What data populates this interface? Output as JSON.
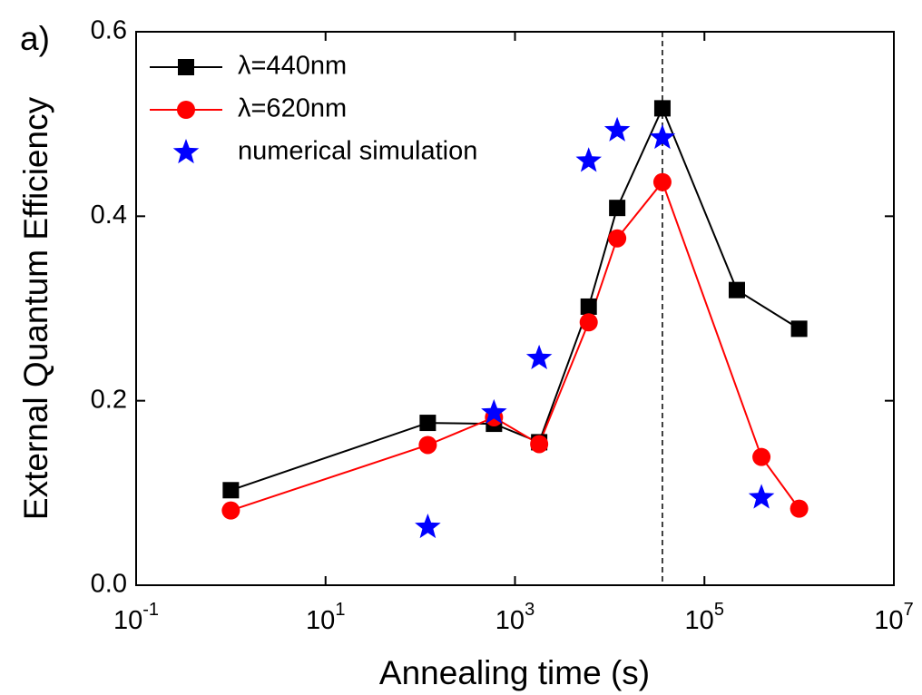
{
  "chart_data": {
    "type": "line",
    "annotation": "a)",
    "x_label": "Annealing time (s)",
    "y_label": "External Quantum Efficiency",
    "xscale": "log",
    "xlim": [
      0.1,
      10000000
    ],
    "ylim": [
      0,
      0.6
    ],
    "xticks": [
      {
        "value": 0.1,
        "label": "10",
        "exponent": "-1"
      },
      {
        "value": 10,
        "label": "10",
        "exponent": "1"
      },
      {
        "value": 1000,
        "label": "10",
        "exponent": "3"
      },
      {
        "value": 100000,
        "label": "10",
        "exponent": "5"
      },
      {
        "value": 10000000,
        "label": "10",
        "exponent": "7"
      }
    ],
    "yticks": [
      {
        "value": 0,
        "label": "0.0"
      },
      0.2,
      0.4,
      0.6
    ],
    "reference_line_x": 36000,
    "legend": "upper left",
    "series": [
      {
        "name": "λ=440nm",
        "color": "#000000",
        "marker": "square",
        "line": true,
        "x": [
          1,
          120,
          600,
          1800,
          6000,
          12000,
          36000,
          220000,
          1000000
        ],
        "values": [
          0.103,
          0.176,
          0.175,
          0.155,
          0.302,
          0.409,
          0.517,
          0.32,
          0.278
        ]
      },
      {
        "name": "λ=620nm",
        "color": "#ff0000",
        "marker": "circle",
        "line": true,
        "x": [
          1,
          120,
          600,
          1800,
          6000,
          12000,
          36000,
          400000,
          1000000
        ],
        "values": [
          0.081,
          0.152,
          0.182,
          0.153,
          0.285,
          0.376,
          0.437,
          0.139,
          0.083
        ]
      },
      {
        "name": "numerical simulation",
        "color": "#0000ff",
        "marker": "star",
        "line": false,
        "x": [
          120,
          600,
          1800,
          6000,
          12000,
          36000,
          400000
        ],
        "values": [
          0.063,
          0.187,
          0.246,
          0.46,
          0.493,
          0.485,
          0.095
        ]
      }
    ]
  }
}
